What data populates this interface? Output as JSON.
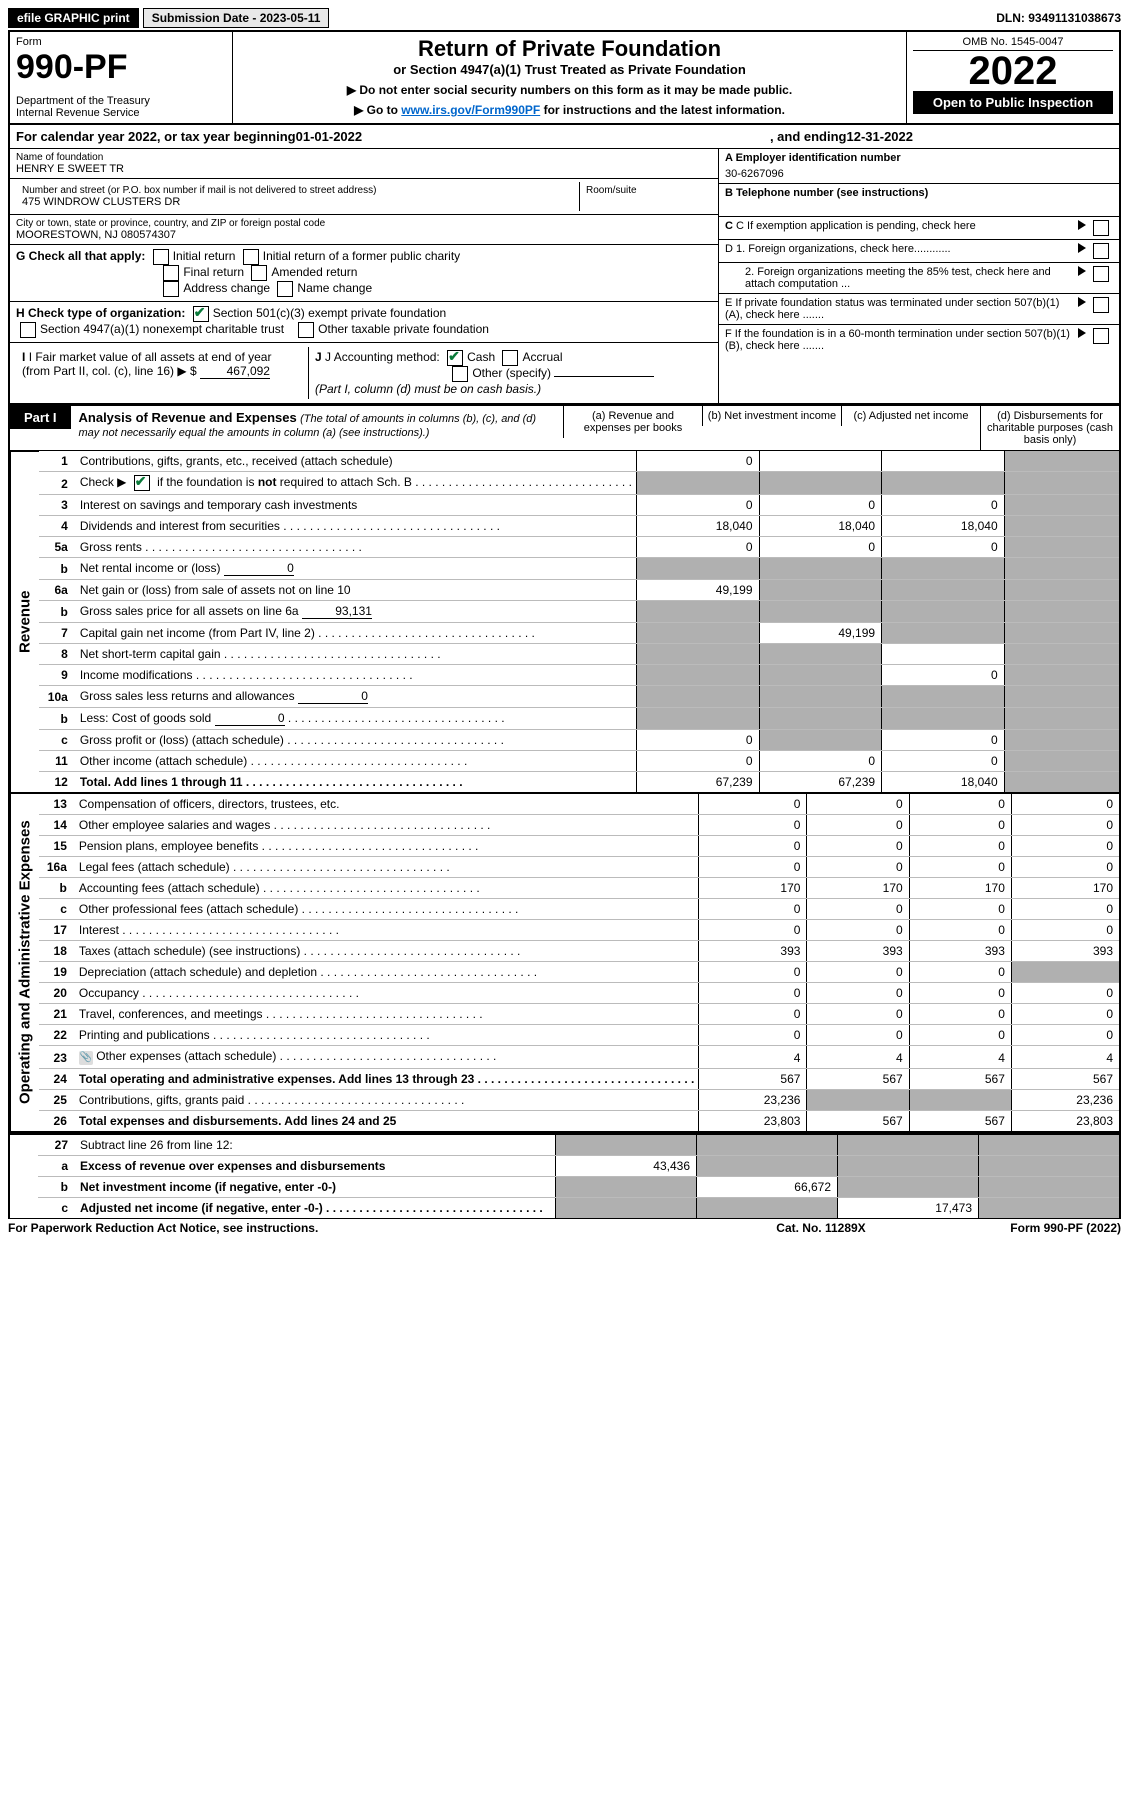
{
  "top_bar": {
    "efile_label": "efile GRAPHIC print",
    "submission_label": "Submission Date - 2023-05-11",
    "dln_label": "DLN: 93491131038673"
  },
  "header": {
    "form_word": "Form",
    "form_number": "990-PF",
    "dept": "Department of the Treasury",
    "irs": "Internal Revenue Service",
    "title": "Return of Private Foundation",
    "subtitle": "or Section 4947(a)(1) Trust Treated as Private Foundation",
    "instr1": "▶ Do not enter social security numbers on this form as it may be made public.",
    "instr2": "▶ Go to www.irs.gov/Form990PF for instructions and the latest information.",
    "instr2_link": "www.irs.gov/Form990PF",
    "omb": "OMB No. 1545-0047",
    "year": "2022",
    "open_public": "Open to Public Inspection"
  },
  "calendar": {
    "prefix": "For calendar year 2022, or tax year beginning ",
    "begin": "01-01-2022",
    "mid": ", and ending ",
    "end": "12-31-2022"
  },
  "info": {
    "name_label": "Name of foundation",
    "name": "HENRY E SWEET TR",
    "addr_label": "Number and street (or P.O. box number if mail is not delivered to street address)",
    "addr": "475 WINDROW CLUSTERS DR",
    "room_label": "Room/suite",
    "city_label": "City or town, state or province, country, and ZIP or foreign postal code",
    "city": "MOORESTOWN, NJ 080574307",
    "a_label": "A Employer identification number",
    "a_val": "30-6267096",
    "b_label": "B Telephone number (see instructions)",
    "c_label": "C If exemption application is pending, check here",
    "d1_label": "D 1. Foreign organizations, check here............",
    "d2_label": "2. Foreign organizations meeting the 85% test, check here and attach computation ...",
    "e_label": "E If private foundation status was terminated under section 507(b)(1)(A), check here .......",
    "f_label": "F If the foundation is in a 60-month termination under section 507(b)(1)(B), check here .......",
    "g_label": "G Check all that apply:",
    "g_opts": [
      "Initial return",
      "Initial return of a former public charity",
      "Final return",
      "Amended return",
      "Address change",
      "Name change"
    ],
    "h_label": "H Check type of organization:",
    "h_opts": [
      "Section 501(c)(3) exempt private foundation",
      "Section 4947(a)(1) nonexempt charitable trust",
      "Other taxable private foundation"
    ],
    "i_label": "I Fair market value of all assets at end of year (from Part II, col. (c), line 16)",
    "i_val": "467,092",
    "i_prefix": "▶ $",
    "j_label": "J Accounting method:",
    "j_cash": "Cash",
    "j_accrual": "Accrual",
    "j_other": "Other (specify)",
    "j_note": "(Part I, column (d) must be on cash basis.)"
  },
  "part1": {
    "tab": "Part I",
    "title": "Analysis of Revenue and Expenses",
    "note": "(The total of amounts in columns (b), (c), and (d) may not necessarily equal the amounts in column (a) (see instructions).)",
    "col_a": "(a) Revenue and expenses per books",
    "col_b": "(b) Net investment income",
    "col_c": "(c) Adjusted net income",
    "col_d": "(d) Disbursements for charitable purposes (cash basis only)"
  },
  "side_labels": {
    "revenue": "Revenue",
    "expenses": "Operating and Administrative Expenses"
  },
  "rows": [
    {
      "n": "1",
      "desc": "Contributions, gifts, grants, etc., received (attach schedule)",
      "a": "0",
      "b": "",
      "c": "",
      "d": "",
      "shade": [
        "d"
      ]
    },
    {
      "n": "2",
      "desc": "Check ▶ ☑ if the foundation is not required to attach Sch. B",
      "a": "",
      "b": "",
      "c": "",
      "d": "",
      "shade": [
        "a",
        "b",
        "c",
        "d"
      ],
      "dots": true,
      "checkmark": true
    },
    {
      "n": "3",
      "desc": "Interest on savings and temporary cash investments",
      "a": "0",
      "b": "0",
      "c": "0",
      "d": "",
      "shade": [
        "d"
      ]
    },
    {
      "n": "4",
      "desc": "Dividends and interest from securities",
      "a": "18,040",
      "b": "18,040",
      "c": "18,040",
      "d": "",
      "shade": [
        "d"
      ],
      "dots": true
    },
    {
      "n": "5a",
      "desc": "Gross rents",
      "a": "0",
      "b": "0",
      "c": "0",
      "d": "",
      "shade": [
        "d"
      ],
      "dots": true
    },
    {
      "n": "b",
      "desc": "Net rental income or (loss)",
      "inline_val": "0",
      "a": "",
      "b": "",
      "c": "",
      "d": "",
      "shade": [
        "a",
        "b",
        "c",
        "d"
      ]
    },
    {
      "n": "6a",
      "desc": "Net gain or (loss) from sale of assets not on line 10",
      "a": "49,199",
      "b": "",
      "c": "",
      "d": "",
      "shade": [
        "b",
        "c",
        "d"
      ]
    },
    {
      "n": "b",
      "desc": "Gross sales price for all assets on line 6a",
      "inline_val": "93,131",
      "a": "",
      "b": "",
      "c": "",
      "d": "",
      "shade": [
        "a",
        "b",
        "c",
        "d"
      ]
    },
    {
      "n": "7",
      "desc": "Capital gain net income (from Part IV, line 2)",
      "a": "",
      "b": "49,199",
      "c": "",
      "d": "",
      "shade": [
        "a",
        "c",
        "d"
      ],
      "dots": true
    },
    {
      "n": "8",
      "desc": "Net short-term capital gain",
      "a": "",
      "b": "",
      "c": "",
      "d": "",
      "shade": [
        "a",
        "b",
        "d"
      ],
      "dots": true
    },
    {
      "n": "9",
      "desc": "Income modifications",
      "a": "",
      "b": "",
      "c": "0",
      "d": "",
      "shade": [
        "a",
        "b",
        "d"
      ],
      "dots": true
    },
    {
      "n": "10a",
      "desc": "Gross sales less returns and allowances",
      "inline_val": "0",
      "a": "",
      "b": "",
      "c": "",
      "d": "",
      "shade": [
        "a",
        "b",
        "c",
        "d"
      ]
    },
    {
      "n": "b",
      "desc": "Less: Cost of goods sold",
      "inline_val": "0",
      "a": "",
      "b": "",
      "c": "",
      "d": "",
      "shade": [
        "a",
        "b",
        "c",
        "d"
      ],
      "dots": true
    },
    {
      "n": "c",
      "desc": "Gross profit or (loss) (attach schedule)",
      "a": "0",
      "b": "",
      "c": "0",
      "d": "",
      "shade": [
        "b",
        "d"
      ],
      "dots": true
    },
    {
      "n": "11",
      "desc": "Other income (attach schedule)",
      "a": "0",
      "b": "0",
      "c": "0",
      "d": "",
      "shade": [
        "d"
      ],
      "dots": true
    },
    {
      "n": "12",
      "desc": "Total. Add lines 1 through 11",
      "a": "67,239",
      "b": "67,239",
      "c": "18,040",
      "d": "",
      "shade": [
        "d"
      ],
      "bold": true,
      "dots": true
    }
  ],
  "expense_rows": [
    {
      "n": "13",
      "desc": "Compensation of officers, directors, trustees, etc.",
      "a": "0",
      "b": "0",
      "c": "0",
      "d": "0"
    },
    {
      "n": "14",
      "desc": "Other employee salaries and wages",
      "a": "0",
      "b": "0",
      "c": "0",
      "d": "0",
      "dots": true
    },
    {
      "n": "15",
      "desc": "Pension plans, employee benefits",
      "a": "0",
      "b": "0",
      "c": "0",
      "d": "0",
      "dots": true
    },
    {
      "n": "16a",
      "desc": "Legal fees (attach schedule)",
      "a": "0",
      "b": "0",
      "c": "0",
      "d": "0",
      "dots": true
    },
    {
      "n": "b",
      "desc": "Accounting fees (attach schedule)",
      "a": "170",
      "b": "170",
      "c": "170",
      "d": "170",
      "dots": true
    },
    {
      "n": "c",
      "desc": "Other professional fees (attach schedule)",
      "a": "0",
      "b": "0",
      "c": "0",
      "d": "0",
      "dots": true
    },
    {
      "n": "17",
      "desc": "Interest",
      "a": "0",
      "b": "0",
      "c": "0",
      "d": "0",
      "dots": true
    },
    {
      "n": "18",
      "desc": "Taxes (attach schedule) (see instructions)",
      "a": "393",
      "b": "393",
      "c": "393",
      "d": "393",
      "dots": true
    },
    {
      "n": "19",
      "desc": "Depreciation (attach schedule) and depletion",
      "a": "0",
      "b": "0",
      "c": "0",
      "d": "",
      "shade": [
        "d"
      ],
      "dots": true
    },
    {
      "n": "20",
      "desc": "Occupancy",
      "a": "0",
      "b": "0",
      "c": "0",
      "d": "0",
      "dots": true
    },
    {
      "n": "21",
      "desc": "Travel, conferences, and meetings",
      "a": "0",
      "b": "0",
      "c": "0",
      "d": "0",
      "dots": true
    },
    {
      "n": "22",
      "desc": "Printing and publications",
      "a": "0",
      "b": "0",
      "c": "0",
      "d": "0",
      "dots": true
    },
    {
      "n": "23",
      "desc": "Other expenses (attach schedule)",
      "a": "4",
      "b": "4",
      "c": "4",
      "d": "4",
      "dots": true,
      "clip": true
    },
    {
      "n": "24",
      "desc": "Total operating and administrative expenses. Add lines 13 through 23",
      "a": "567",
      "b": "567",
      "c": "567",
      "d": "567",
      "bold": true,
      "dots": true
    },
    {
      "n": "25",
      "desc": "Contributions, gifts, grants paid",
      "a": "23,236",
      "b": "",
      "c": "",
      "d": "23,236",
      "shade": [
        "b",
        "c"
      ],
      "dots": true
    },
    {
      "n": "26",
      "desc": "Total expenses and disbursements. Add lines 24 and 25",
      "a": "23,803",
      "b": "567",
      "c": "567",
      "d": "23,803",
      "bold": true
    }
  ],
  "bottom_rows": [
    {
      "n": "27",
      "desc": "Subtract line 26 from line 12:",
      "a": "",
      "b": "",
      "c": "",
      "d": "",
      "shade": [
        "a",
        "b",
        "c",
        "d"
      ]
    },
    {
      "n": "a",
      "desc": "Excess of revenue over expenses and disbursements",
      "a": "43,436",
      "b": "",
      "c": "",
      "d": "",
      "shade": [
        "b",
        "c",
        "d"
      ],
      "bold": true
    },
    {
      "n": "b",
      "desc": "Net investment income (if negative, enter -0-)",
      "a": "",
      "b": "66,672",
      "c": "",
      "d": "",
      "shade": [
        "a",
        "c",
        "d"
      ],
      "bold": true
    },
    {
      "n": "c",
      "desc": "Adjusted net income (if negative, enter -0-)",
      "a": "",
      "b": "",
      "c": "17,473",
      "d": "",
      "shade": [
        "a",
        "b",
        "d"
      ],
      "bold": true,
      "dots": true
    }
  ],
  "footer": {
    "left": "For Paperwork Reduction Act Notice, see instructions.",
    "mid": "Cat. No. 11289X",
    "right": "Form 990-PF (2022)"
  }
}
